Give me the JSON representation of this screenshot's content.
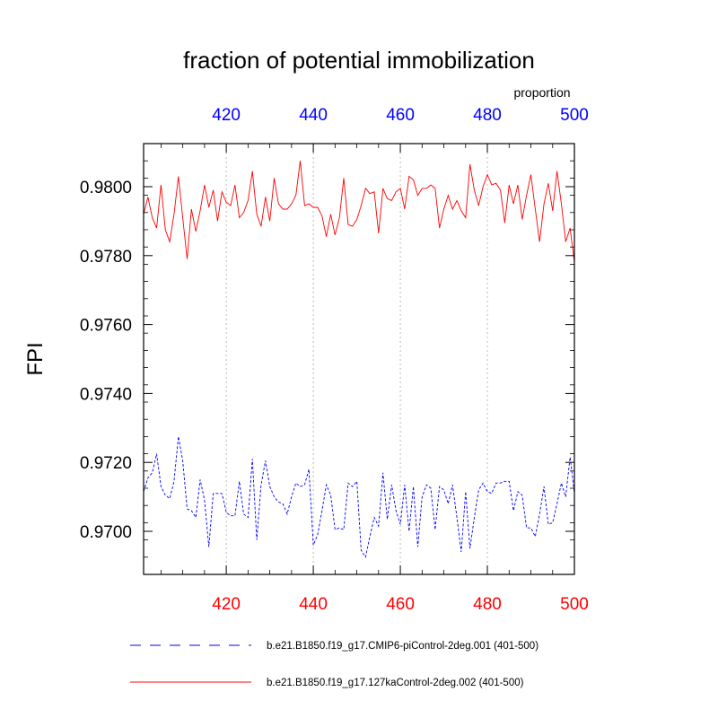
{
  "chart_data": {
    "type": "line",
    "title": "fraction of potential immobilization",
    "ylabel": "FPI",
    "top_axis_label": "proportion",
    "xlim": [
      401,
      500
    ],
    "ylim": [
      0.96875,
      0.98125
    ],
    "x_ticks": [
      "420",
      "440",
      "460",
      "480",
      "500"
    ],
    "y_ticks": [
      "0.9700",
      "0.9720",
      "0.9740",
      "0.9760",
      "0.9780",
      "0.9800"
    ],
    "bottom_tick_color": "#ff0000",
    "top_tick_color": "#0000ff",
    "grid": "vertical dotted lines at major x ticks",
    "legend_placement": "below plot",
    "x": [
      401,
      402,
      403,
      404,
      405,
      406,
      407,
      408,
      409,
      410,
      411,
      412,
      413,
      414,
      415,
      416,
      417,
      418,
      419,
      420,
      421,
      422,
      423,
      424,
      425,
      426,
      427,
      428,
      429,
      430,
      431,
      432,
      433,
      434,
      435,
      436,
      437,
      438,
      439,
      440,
      441,
      442,
      443,
      444,
      445,
      446,
      447,
      448,
      449,
      450,
      451,
      452,
      453,
      454,
      455,
      456,
      457,
      458,
      459,
      460,
      461,
      462,
      463,
      464,
      465,
      466,
      467,
      468,
      469,
      470,
      471,
      472,
      473,
      474,
      475,
      476,
      477,
      478,
      479,
      480,
      481,
      482,
      483,
      484,
      485,
      486,
      487,
      488,
      489,
      490,
      491,
      492,
      493,
      494,
      495,
      496,
      497,
      498,
      499,
      500
    ],
    "series": [
      {
        "name": "b.e21.B1850.f19_g17.CMIP6-piControl-2deg.001 (401-500)",
        "color": "#0000ff",
        "dash": "dashed",
        "values": [
          0.97115,
          0.97155,
          0.9717,
          0.97225,
          0.9713,
          0.97105,
          0.97095,
          0.97145,
          0.97275,
          0.97205,
          0.97065,
          0.9706,
          0.9704,
          0.9715,
          0.9709,
          0.96955,
          0.9711,
          0.9711,
          0.9711,
          0.97055,
          0.97045,
          0.97045,
          0.97145,
          0.9705,
          0.9704,
          0.9721,
          0.96975,
          0.97135,
          0.97205,
          0.9713,
          0.971,
          0.97085,
          0.9708,
          0.9705,
          0.971,
          0.9714,
          0.9713,
          0.97135,
          0.9718,
          0.9696,
          0.9699,
          0.9706,
          0.97135,
          0.97105,
          0.97005,
          0.9701,
          0.97005,
          0.9714,
          0.9713,
          0.97145,
          0.96945,
          0.96925,
          0.96985,
          0.9704,
          0.97015,
          0.9717,
          0.97035,
          0.97135,
          0.9706,
          0.9702,
          0.97135,
          0.97,
          0.9713,
          0.96955,
          0.971,
          0.97135,
          0.97125,
          0.97005,
          0.9713,
          0.9712,
          0.9708,
          0.97135,
          0.9704,
          0.9694,
          0.97115,
          0.9695,
          0.9704,
          0.9712,
          0.9714,
          0.97115,
          0.9711,
          0.9714,
          0.9714,
          0.97145,
          0.97145,
          0.9706,
          0.97115,
          0.97105,
          0.9701,
          0.9701,
          0.96985,
          0.9705,
          0.9713,
          0.9702,
          0.97025,
          0.9708,
          0.9714,
          0.971,
          0.97215,
          0.9711
        ]
      },
      {
        "name": "b.e21.B1850.f19_g17.127kaControl-2deg.002 (401-500)",
        "color": "#ff0000",
        "dash": "solid",
        "values": [
          0.9792,
          0.9797,
          0.9791,
          0.9788,
          0.98005,
          0.97875,
          0.9784,
          0.9792,
          0.9803,
          0.9791,
          0.9779,
          0.97935,
          0.9787,
          0.9793,
          0.98005,
          0.9794,
          0.9799,
          0.979,
          0.97985,
          0.97955,
          0.97945,
          0.98005,
          0.9791,
          0.97925,
          0.9796,
          0.98045,
          0.9792,
          0.97885,
          0.9797,
          0.979,
          0.98025,
          0.9795,
          0.97935,
          0.97935,
          0.9795,
          0.97975,
          0.98075,
          0.97945,
          0.9795,
          0.9794,
          0.9794,
          0.97915,
          0.97855,
          0.9792,
          0.9786,
          0.9791,
          0.98025,
          0.9789,
          0.97885,
          0.97905,
          0.97945,
          0.97995,
          0.9798,
          0.97985,
          0.97865,
          0.97995,
          0.97965,
          0.9796,
          0.97985,
          0.97995,
          0.97935,
          0.9803,
          0.9802,
          0.97975,
          0.97995,
          0.97995,
          0.98005,
          0.97995,
          0.9788,
          0.97935,
          0.97975,
          0.97935,
          0.9796,
          0.9793,
          0.9791,
          0.98065,
          0.9799,
          0.97945,
          0.98,
          0.98035,
          0.98005,
          0.9801,
          0.9799,
          0.97895,
          0.98005,
          0.9795,
          0.98005,
          0.97905,
          0.97975,
          0.98035,
          0.97935,
          0.9784,
          0.9795,
          0.9801,
          0.9793,
          0.98045,
          0.9795,
          0.9784,
          0.9788,
          0.9778
        ]
      }
    ]
  }
}
